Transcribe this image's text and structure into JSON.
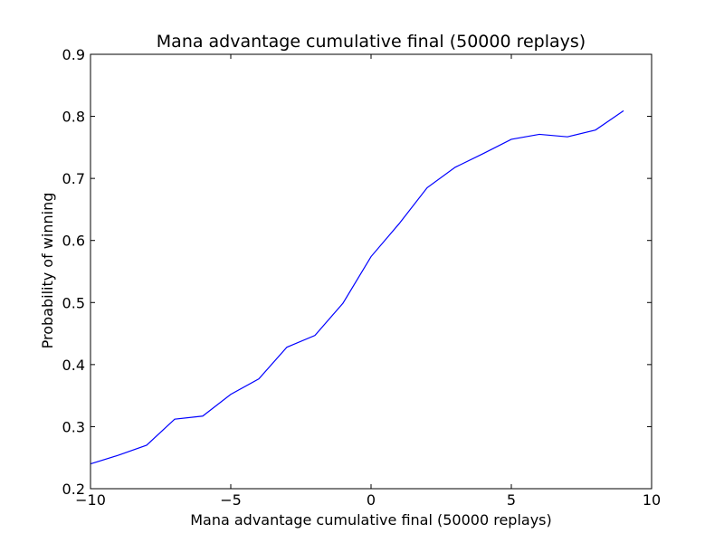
{
  "chart_data": {
    "type": "line",
    "title": "Mana advantage cumulative final (50000 replays)",
    "xlabel": "Mana advantage cumulative final (50000 replays)",
    "ylabel": "Probability of winning",
    "xlim": [
      -10,
      10
    ],
    "ylim": [
      0.2,
      0.9
    ],
    "x_ticks": [
      -10,
      -5,
      0,
      5,
      10
    ],
    "x_tick_labels": [
      "−10",
      "−5",
      "0",
      "5",
      "10"
    ],
    "y_ticks": [
      0.2,
      0.3,
      0.4,
      0.5,
      0.6,
      0.7,
      0.8,
      0.9
    ],
    "y_tick_labels": [
      "0.2",
      "0.3",
      "0.4",
      "0.5",
      "0.6",
      "0.7",
      "0.8",
      "0.9"
    ],
    "grid": false,
    "line_color": "#0000ff",
    "series": [
      {
        "x": [
          -10,
          -9,
          -8,
          -7,
          -6,
          -5,
          -4,
          -3,
          -2,
          -1,
          0,
          1,
          2,
          3,
          4,
          5,
          6,
          7,
          8,
          9
        ],
        "y": [
          0.24,
          0.254,
          0.27,
          0.312,
          0.317,
          0.352,
          0.377,
          0.428,
          0.447,
          0.499,
          0.574,
          0.627,
          0.685,
          0.718,
          0.74,
          0.763,
          0.771,
          0.767,
          0.778,
          0.809
        ]
      }
    ]
  }
}
